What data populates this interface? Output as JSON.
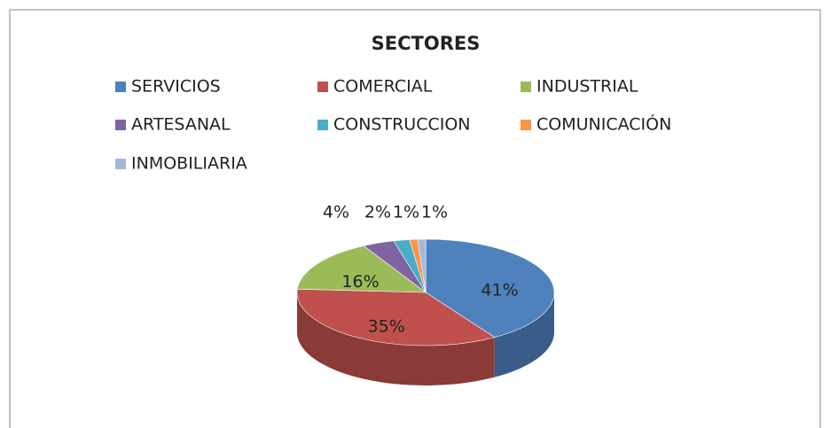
{
  "chart_data": {
    "type": "pie3d",
    "title": "SECTORES",
    "categories": [
      "SERVICIOS",
      "COMERCIAL",
      "INDUSTRIAL",
      "ARTESANAL",
      "CONSTRUCCION",
      "COMUNICACIÓN",
      "INMOBILIARIA"
    ],
    "values": [
      41,
      35,
      16,
      4,
      2,
      1,
      1
    ],
    "value_labels": [
      "41%",
      "35%",
      "16%",
      "4%",
      "2%",
      "1%",
      "1%"
    ],
    "colors": [
      "#4f81bd",
      "#c0504d",
      "#9bbb59",
      "#8064a2",
      "#4bacc6",
      "#f79646",
      "#a5b8dc"
    ],
    "legend": "top"
  }
}
